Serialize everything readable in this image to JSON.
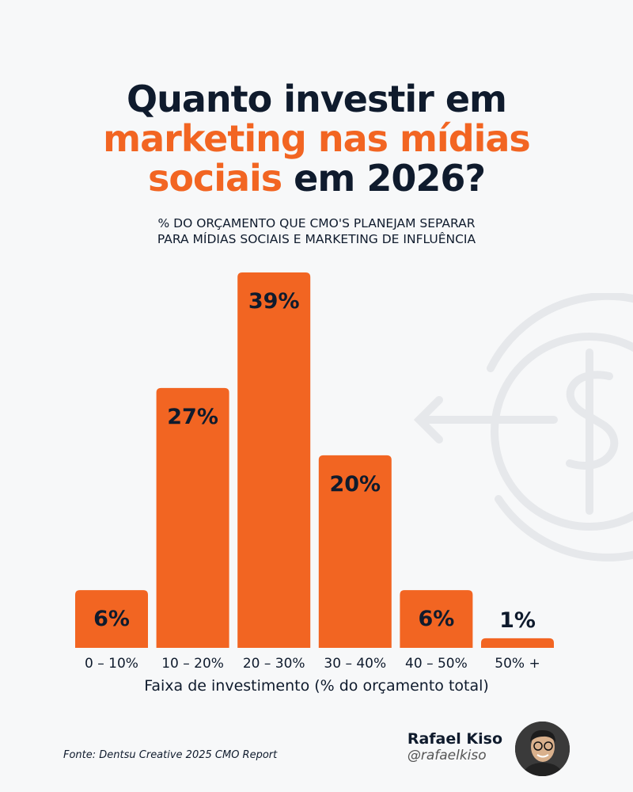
{
  "title": {
    "line1": "Quanto investir em",
    "line2": "marketing nas mídias",
    "line3_orange": "sociais",
    "line3_rest": " em 2026?"
  },
  "subtitle": {
    "line1": "% DO ORÇAMENTO QUE CMO'S PLANEJAM SEPARAR",
    "line2": "PARA MÍDIAS SOCIAIS E MARKETING DE INFLUÊNCIA"
  },
  "colors": {
    "accent": "#f26522",
    "text": "#0f1b2d",
    "background": "#f7f8f9"
  },
  "chart_data": {
    "type": "bar",
    "categories": [
      "0 – 10%",
      "10 – 20%",
      "20 – 30%",
      "30 – 40%",
      "40 – 50%",
      "50% +"
    ],
    "values": [
      6,
      27,
      39,
      20,
      6,
      1
    ],
    "data_labels": [
      "6%",
      "27%",
      "39%",
      "20%",
      "6%",
      "1%"
    ],
    "xlabel": "Faixa de investimento (% do orçamento total)",
    "ylabel": "",
    "grid": false
  },
  "footer": {
    "source": "Fonte: Dentsu Creative 2025 CMO Report",
    "author_name": "Rafael Kiso",
    "author_handle": "@rafaelkiso"
  },
  "decoration_icon": "dollar-circular-arrow-icon"
}
